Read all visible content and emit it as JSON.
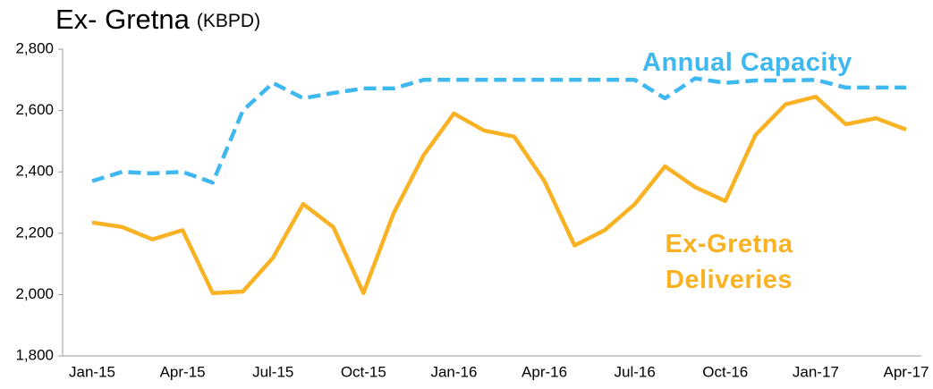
{
  "chart_data": {
    "type": "line",
    "title": "Ex- Gretna",
    "unit": "(KBPD)",
    "categories": [
      "Jan-15",
      null,
      null,
      "Apr-15",
      null,
      null,
      "Jul-15",
      null,
      null,
      "Oct-15",
      null,
      null,
      "Jan-16",
      null,
      null,
      "Apr-16",
      null,
      null,
      "Jul-16",
      null,
      null,
      "Oct-16",
      null,
      null,
      "Jan-17",
      null,
      null,
      "Apr-17"
    ],
    "series": [
      {
        "name": "Annual Capacity",
        "color": "#3fb8ef",
        "dashed": true,
        "values": [
          2370,
          2400,
          2395,
          2400,
          2365,
          2600,
          2690,
          2640,
          2657,
          2672,
          2672,
          2700,
          2700,
          2700,
          2700,
          2700,
          2700,
          2700,
          2700,
          2640,
          2705,
          2690,
          2698,
          2698,
          2700,
          2675,
          2675,
          2675
        ]
      },
      {
        "name": "Ex-Gretna Deliveries",
        "color": "#f9b223",
        "dashed": false,
        "values": [
          2235,
          2220,
          2180,
          2210,
          2005,
          2010,
          2120,
          2295,
          2220,
          2005,
          2265,
          2455,
          2590,
          2535,
          2515,
          2370,
          2160,
          2210,
          2295,
          2418,
          2350,
          2305,
          2520,
          2620,
          2645,
          2555,
          2575,
          2538
        ]
      }
    ],
    "ylim": [
      1800,
      2800
    ],
    "yticks": [
      {
        "value": 1800,
        "label": "1,800"
      },
      {
        "value": 2000,
        "label": "2,000"
      },
      {
        "value": 2200,
        "label": "2,200"
      },
      {
        "value": 2400,
        "label": "2,400"
      },
      {
        "value": 2600,
        "label": "2,600"
      },
      {
        "value": 2800,
        "label": "2,800"
      }
    ],
    "grid": false
  }
}
